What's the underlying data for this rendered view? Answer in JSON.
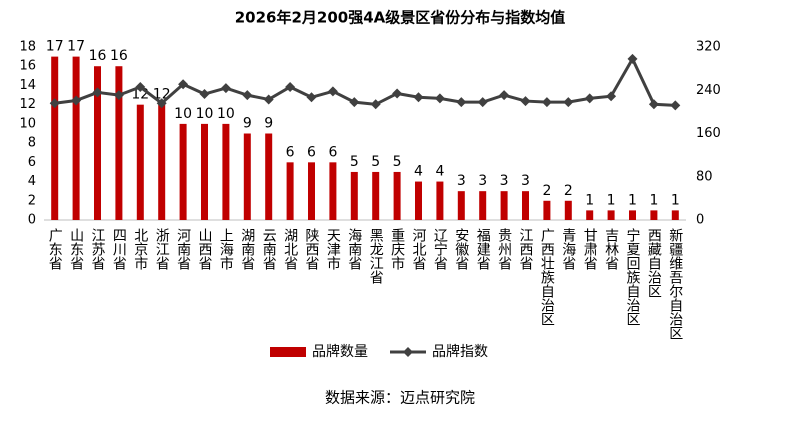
{
  "chart_data": {
    "type": "bar",
    "title": "2026年2月200强4A级景区省份分布与指数均值",
    "categories": [
      "广东省",
      "山东省",
      "江苏省",
      "四川省",
      "北京市",
      "浙江省",
      "河南省",
      "山西省",
      "上海市",
      "湖南省",
      "云南省",
      "湖北省",
      "陕西省",
      "天津市",
      "海南省",
      "黑龙江省",
      "重庆市",
      "河北省",
      "辽宁省",
      "安徽省",
      "福建省",
      "贵州省",
      "江西省",
      "广西壮族自治区",
      "青海省",
      "甘肃省",
      "吉林省",
      "宁夏回族自治区",
      "西藏自治区",
      "新疆维吾尔自治区"
    ],
    "series": [
      {
        "name": "品牌数量",
        "type": "bar",
        "color": "#c00000",
        "values": [
          17,
          17,
          16,
          16,
          12,
          12,
          10,
          10,
          10,
          9,
          9,
          6,
          6,
          6,
          5,
          5,
          5,
          4,
          4,
          3,
          3,
          3,
          3,
          2,
          2,
          1,
          1,
          1,
          1,
          1
        ]
      },
      {
        "name": "品牌指数",
        "type": "line",
        "axis": "y2",
        "color": "#404040",
        "values": [
          216,
          221,
          236,
          231,
          246,
          216,
          251,
          233,
          244,
          231,
          223,
          246,
          227,
          238,
          218,
          214,
          234,
          227,
          225,
          218,
          218,
          231,
          220,
          218,
          218,
          225,
          229,
          298,
          214,
          212
        ]
      }
    ],
    "ylim": [
      0,
      18
    ],
    "yticks": [
      0,
      2,
      4,
      6,
      8,
      10,
      12,
      14,
      16,
      18
    ],
    "y2lim": [
      0,
      320
    ],
    "y2ticks": [
      0,
      80,
      160,
      240,
      320
    ],
    "legend": "bottom",
    "source": "数据来源：迈点研究院"
  }
}
